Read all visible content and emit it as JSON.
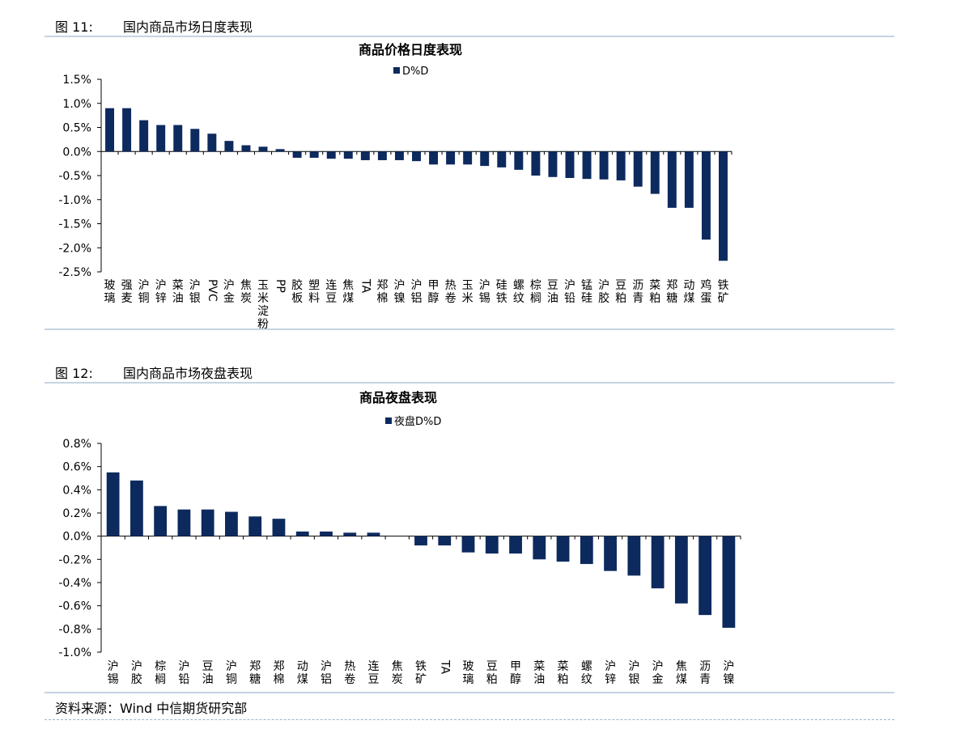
{
  "figures": [
    {
      "number": "图 11:",
      "title": "国内商品市场日度表现"
    },
    {
      "number": "图 12:",
      "title": "国内商品市场夜盘表现"
    }
  ],
  "source": "资料来源：Wind  中信期货研究部",
  "colors": {
    "bar": "#0d2a5e",
    "rule": "#c6d3e3"
  },
  "chart_data": [
    {
      "type": "bar",
      "title": "商品价格日度表现",
      "legend": "D%D",
      "legend_position": "top-center",
      "grid": false,
      "ylim": [
        -2.5,
        1.5
      ],
      "yticks": [
        "1.5%",
        "1.0%",
        "0.5%",
        "0.0%",
        "-0.5%",
        "-1.0%",
        "-1.5%",
        "-2.0%",
        "-2.5%"
      ],
      "categories": [
        "玻璃",
        "强麦",
        "沪铜",
        "沪锌",
        "菜油",
        "沪银",
        "PVC",
        "沪金",
        "焦炭",
        "玉米淀粉",
        "PP",
        "胶板",
        "塑料",
        "连豆",
        "焦煤",
        "TA",
        "郑棉",
        "沪镍",
        "沪铝",
        "甲醇",
        "热卷",
        "玉米",
        "沪锡",
        "硅铁",
        "螺纹",
        "棕榈",
        "豆油",
        "沪铅",
        "锰硅",
        "沪胶",
        "豆粕",
        "沥青",
        "菜粕",
        "郑糖",
        "动煤",
        "鸡蛋",
        "铁矿"
      ],
      "values": [
        0.9,
        0.9,
        0.65,
        0.55,
        0.55,
        0.47,
        0.37,
        0.22,
        0.13,
        0.1,
        0.05,
        -0.13,
        -0.13,
        -0.15,
        -0.15,
        -0.18,
        -0.18,
        -0.18,
        -0.2,
        -0.27,
        -0.27,
        -0.27,
        -0.3,
        -0.33,
        -0.38,
        -0.5,
        -0.53,
        -0.55,
        -0.57,
        -0.58,
        -0.6,
        -0.73,
        -0.88,
        -1.17,
        -1.17,
        -1.83,
        -2.27
      ]
    },
    {
      "type": "bar",
      "title": "商品夜盘表现",
      "legend": "夜盘D%D",
      "legend_position": "top-center",
      "grid": false,
      "ylim": [
        -1.0,
        0.8
      ],
      "yticks": [
        "0.8%",
        "0.6%",
        "0.4%",
        "0.2%",
        "0.0%",
        "-0.2%",
        "-0.4%",
        "-0.6%",
        "-0.8%",
        "-1.0%"
      ],
      "categories": [
        "沪锡",
        "沪胶",
        "棕榈",
        "沪铅",
        "豆油",
        "沪铜",
        "郑糖",
        "郑棉",
        "动煤",
        "沪铝",
        "热卷",
        "连豆",
        "焦炭",
        "铁矿",
        "TA",
        "玻璃",
        "豆粕",
        "甲醇",
        "菜油",
        "菜粕",
        "螺纹",
        "沪锌",
        "沪银",
        "沪金",
        "焦煤",
        "沥青",
        "沪镍"
      ],
      "values": [
        0.55,
        0.48,
        0.26,
        0.23,
        0.23,
        0.21,
        0.17,
        0.15,
        0.04,
        0.04,
        0.03,
        0.03,
        0.0,
        -0.08,
        -0.08,
        -0.14,
        -0.15,
        -0.15,
        -0.2,
        -0.22,
        -0.24,
        -0.3,
        -0.34,
        -0.45,
        -0.58,
        -0.68,
        -0.79
      ]
    }
  ]
}
